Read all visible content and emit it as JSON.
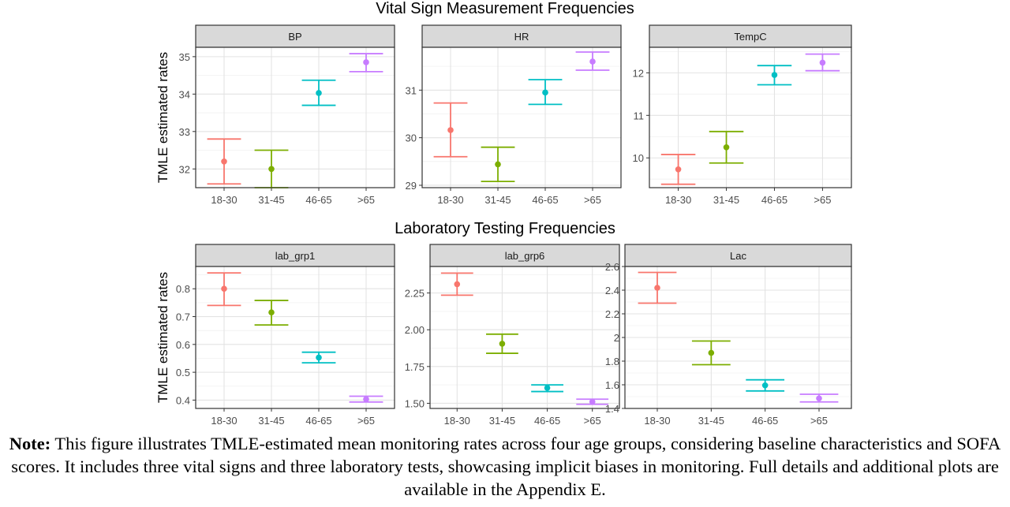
{
  "colors": {
    "18-30": "#F8766D",
    "31-45": "#7CAE00",
    "46-65": "#00BFC4",
    ">65": "#C77CFF"
  },
  "chart_data": [
    {
      "type": "scatter",
      "subtype": "errorbar",
      "title": "Vital Sign Measurement Frequencies",
      "ylabel": "TMLE estimated rates",
      "xlabel": "",
      "categories": [
        "18-30",
        "31-45",
        "46-65",
        ">65"
      ],
      "grid": true,
      "panels": [
        {
          "name": "BP",
          "ylim": [
            31.5,
            35.25
          ],
          "yticks": [
            32,
            33,
            34,
            35
          ],
          "points": [
            {
              "x": "18-30",
              "y": 32.2,
              "ymin": 31.6,
              "ymax": 32.8
            },
            {
              "x": "31-45",
              "y": 32.0,
              "ymin": 31.5,
              "ymax": 32.5
            },
            {
              "x": "46-65",
              "y": 34.03,
              "ymin": 33.7,
              "ymax": 34.37
            },
            {
              "x": ">65",
              "y": 34.85,
              "ymin": 34.6,
              "ymax": 35.08
            }
          ]
        },
        {
          "name": "HR",
          "ylim": [
            28.95,
            31.9
          ],
          "yticks": [
            29,
            30,
            31
          ],
          "points": [
            {
              "x": "18-30",
              "y": 30.16,
              "ymin": 29.6,
              "ymax": 30.73
            },
            {
              "x": "31-45",
              "y": 29.44,
              "ymin": 29.08,
              "ymax": 29.8
            },
            {
              "x": "46-65",
              "y": 30.95,
              "ymin": 30.7,
              "ymax": 31.22
            },
            {
              "x": ">65",
              "y": 31.6,
              "ymin": 31.42,
              "ymax": 31.8
            }
          ]
        },
        {
          "name": "TempC",
          "ylim": [
            9.3,
            12.6
          ],
          "yticks": [
            10,
            11,
            12
          ],
          "points": [
            {
              "x": "18-30",
              "y": 9.73,
              "ymin": 9.38,
              "ymax": 10.08
            },
            {
              "x": "31-45",
              "y": 10.25,
              "ymin": 9.88,
              "ymax": 10.62
            },
            {
              "x": "46-65",
              "y": 11.95,
              "ymin": 11.72,
              "ymax": 12.17
            },
            {
              "x": ">65",
              "y": 12.24,
              "ymin": 12.05,
              "ymax": 12.44
            }
          ]
        }
      ]
    },
    {
      "type": "scatter",
      "subtype": "errorbar",
      "title": "Laboratory Testing Frequencies",
      "ylabel": "TMLE estimated rates",
      "xlabel": "",
      "categories": [
        "18-30",
        "31-45",
        "46-65",
        ">65"
      ],
      "grid": true,
      "panels": [
        {
          "name": "lab_grp1",
          "ylim": [
            0.37,
            0.88
          ],
          "yticks": [
            0.4,
            0.5,
            0.6,
            0.7,
            0.8
          ],
          "points": [
            {
              "x": "18-30",
              "y": 0.8,
              "ymin": 0.74,
              "ymax": 0.857
            },
            {
              "x": "31-45",
              "y": 0.715,
              "ymin": 0.67,
              "ymax": 0.758
            },
            {
              "x": "46-65",
              "y": 0.553,
              "ymin": 0.534,
              "ymax": 0.572
            },
            {
              "x": ">65",
              "y": 0.403,
              "ymin": 0.393,
              "ymax": 0.414
            }
          ]
        },
        {
          "name": "lab_grp6",
          "ylim": [
            1.465,
            2.43
          ],
          "yticks": [
            1.5,
            1.75,
            2.0,
            2.25
          ],
          "ytick_labels": [
            "1.50",
            "1.75",
            "2.00",
            "2.25"
          ],
          "points": [
            {
              "x": "18-30",
              "y": 2.31,
              "ymin": 2.235,
              "ymax": 2.385
            },
            {
              "x": "31-45",
              "y": 1.905,
              "ymin": 1.84,
              "ymax": 1.97
            },
            {
              "x": "46-65",
              "y": 1.605,
              "ymin": 1.58,
              "ymax": 1.625
            },
            {
              "x": ">65",
              "y": 1.51,
              "ymin": 1.493,
              "ymax": 1.528
            }
          ]
        },
        {
          "name": "Lac",
          "ylim": [
            1.4,
            2.6
          ],
          "yticks": [
            1.4,
            1.6,
            1.8,
            2.0,
            2.2,
            2.4,
            2.6
          ],
          "points": [
            {
              "x": "18-30",
              "y": 2.42,
              "ymin": 2.29,
              "ymax": 2.55
            },
            {
              "x": "31-45",
              "y": 1.87,
              "ymin": 1.77,
              "ymax": 1.97
            },
            {
              "x": "46-65",
              "y": 1.595,
              "ymin": 1.548,
              "ymax": 1.642
            },
            {
              "x": ">65",
              "y": 1.485,
              "ymin": 1.455,
              "ymax": 1.52
            }
          ]
        }
      ]
    }
  ],
  "caption": {
    "bold": "Note:",
    "text": " This figure illustrates TMLE-estimated mean monitoring rates across four age groups, considering baseline characteristics and SOFA scores. It includes three vital signs and three laboratory tests, showcasing implicit biases in monitoring. Full details and additional plots are available in the Appendix E."
  }
}
